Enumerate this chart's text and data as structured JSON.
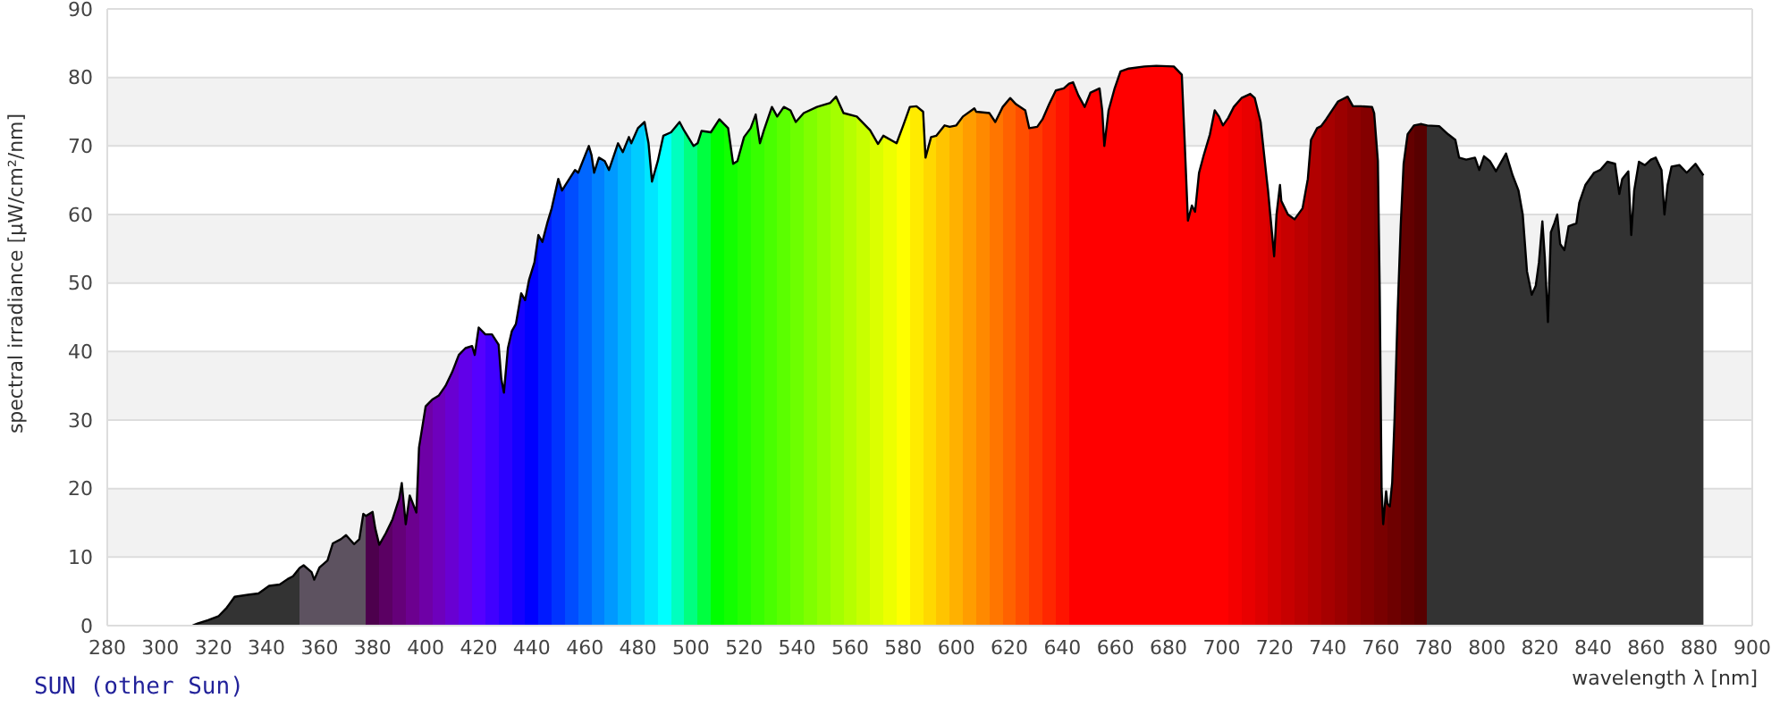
{
  "chart_data": {
    "type": "area",
    "title": "SUN (other Sun)",
    "xlabel": "wavelength λ [nm]",
    "ylabel": "spectral irradiance [µW/cm²/nm]",
    "x": [
      312,
      314,
      318,
      322,
      325,
      328,
      333,
      337,
      341,
      345,
      348,
      350,
      352.5,
      354,
      357,
      358,
      360,
      363,
      365,
      368,
      370,
      373,
      375,
      376.5,
      377.5,
      380,
      381,
      382.5,
      385,
      387.5,
      390,
      391,
      392.5,
      394,
      396.5,
      397.5,
      400,
      402.5,
      405,
      407.5,
      410,
      412.5,
      415,
      417.5,
      418.5,
      420,
      422.5,
      425,
      427.5,
      428.5,
      429.5,
      431,
      432.5,
      434,
      436,
      437.5,
      439,
      441,
      442.5,
      444,
      445.8,
      447.5,
      450,
      451.4,
      452.5,
      456.3,
      457.5,
      461.5,
      462.5,
      463.5,
      465.3,
      467.5,
      469.1,
      472.5,
      474.3,
      476.6,
      477.5,
      480,
      482.5,
      484,
      485.3,
      487.5,
      489.6,
      492.5,
      495.7,
      497.5,
      501,
      502.5,
      504,
      507.5,
      510.7,
      512.5,
      514,
      515.9,
      517.5,
      520,
      522.5,
      524.4,
      526,
      527.5,
      530.5,
      532.5,
      535,
      537.5,
      539.5,
      542.5,
      547.5,
      552.5,
      554.7,
      557.5,
      562.5,
      567.5,
      570.5,
      572.5,
      577.5,
      580,
      582.5,
      585,
      587.5,
      588.4,
      590.5,
      592.5,
      595.6,
      597.5,
      600,
      602.5,
      606.8,
      607.5,
      612.5,
      614.7,
      617.5,
      620.3,
      622.5,
      626,
      627.5,
      630.5,
      632.5,
      635,
      637.5,
      640.5,
      642.5,
      644,
      646,
      648.4,
      650.6,
      654,
      655,
      655.8,
      657.4,
      659.6,
      661.9,
      665,
      670.9,
      675.4,
      682,
      685,
      686.1,
      687.3,
      688.8,
      690,
      691.5,
      693.3,
      695.6,
      697.4,
      699,
      700.5,
      702.5,
      704.6,
      707.5,
      710.8,
      712.5,
      714.7,
      717,
      717.5,
      719.8,
      720.7,
      722,
      722.5,
      725,
      727.5,
      730.5,
      732.5,
      733.7,
      736,
      737.5,
      739.4,
      742.5,
      743.9,
      747.5,
      749.5,
      752.5,
      756.7,
      757.5,
      758.9,
      759.6,
      760.3,
      760.9,
      762,
      762.5,
      763.4,
      764.3,
      765.2,
      766.3,
      767.5,
      768.6,
      770.1,
      772.5,
      775.3,
      777.5,
      782,
      785.4,
      788.1,
      789.5,
      792.2,
      795.5,
      797.1,
      798.9,
      801.1,
      803.4,
      807.2,
      809.7,
      811.9,
      813.5,
      815.1,
      816.9,
      818.4,
      819.6,
      820.9,
      821.8,
      823,
      824.1,
      825.4,
      826.5,
      827.6,
      829.2,
      830.8,
      833.7,
      834.8,
      837.1,
      840.4,
      842.7,
      845.4,
      848.3,
      849.9,
      851,
      853.3,
      854.4,
      855.5,
      857.3,
      859.5,
      861.8,
      863.6,
      865.8,
      866.9,
      868.1,
      869.6,
      872.6,
      875.3,
      878.6,
      881.6
    ],
    "values": [
      0,
      0.3,
      0.8,
      1.4,
      2.6,
      4.2,
      4.5,
      4.7,
      5.8,
      6.0,
      6.8,
      7.2,
      8.4,
      8.8,
      7.8,
      6.7,
      8.5,
      9.5,
      12.0,
      12.6,
      13.2,
      11.9,
      12.6,
      16.3,
      16.0,
      16.6,
      14.2,
      11.8,
      13.5,
      15.5,
      18.5,
      20.8,
      14.8,
      19.0,
      16.5,
      26,
      32,
      33.0,
      33.6,
      35.0,
      37.0,
      39.5,
      40.5,
      40.8,
      39.5,
      43.5,
      42.5,
      42.5,
      41.0,
      36.0,
      34.0,
      40.5,
      43.0,
      44.0,
      48.5,
      47.5,
      50.5,
      53.0,
      57.0,
      56.0,
      58.7,
      60.9,
      65.2,
      63.5,
      64.2,
      66.5,
      66.1,
      70.0,
      68.7,
      66.1,
      68.3,
      67.8,
      66.5,
      70.4,
      69.1,
      71.3,
      70.4,
      72.6,
      73.5,
      70.4,
      64.8,
      67.8,
      71.5,
      72.0,
      73.5,
      72.2,
      70.0,
      70.4,
      72.2,
      72.0,
      73.9,
      73.2,
      72.6,
      67.4,
      67.8,
      71.3,
      72.6,
      74.6,
      70.4,
      72.3,
      75.7,
      74.3,
      75.7,
      75.2,
      73.5,
      74.8,
      75.7,
      76.3,
      77.2,
      74.8,
      74.3,
      72.3,
      70.3,
      71.5,
      70.4,
      73.0,
      75.7,
      75.8,
      75.0,
      68.3,
      71.3,
      71.5,
      73.0,
      72.8,
      73.0,
      74.3,
      75.5,
      75.0,
      74.8,
      73.5,
      75.7,
      77.0,
      76.1,
      75.2,
      72.6,
      72.8,
      73.9,
      76.1,
      78.1,
      78.4,
      79.1,
      79.3,
      77.4,
      75.7,
      77.8,
      78.4,
      75.2,
      70.0,
      75.2,
      78.3,
      80.9,
      81.3,
      81.6,
      81.7,
      81.6,
      80.4,
      70.4,
      59.1,
      61.3,
      60.4,
      66.1,
      68.7,
      71.7,
      75.2,
      74.3,
      73.0,
      74.1,
      75.7,
      77.0,
      77.6,
      77.0,
      73.5,
      65.2,
      63.5,
      53.9,
      60.0,
      64.3,
      62.0,
      60.0,
      59.3,
      60.9,
      65.2,
      70.9,
      72.6,
      72.9,
      73.9,
      75.7,
      76.5,
      77.2,
      75.8,
      75.8,
      75.7,
      74.8,
      67.8,
      48.7,
      20.0,
      14.8,
      19.6,
      17.8,
      17.4,
      20.9,
      30.4,
      45.2,
      58.3,
      67.4,
      71.7,
      73.0,
      73.2,
      73.0,
      72.9,
      71.7,
      70.9,
      68.3,
      68.0,
      68.3,
      66.5,
      68.5,
      67.8,
      66.3,
      68.9,
      65.7,
      63.5,
      60.0,
      51.7,
      48.3,
      49.6,
      53.0,
      59.0,
      53.9,
      44.3,
      57.4,
      58.7,
      60.0,
      55.7,
      54.8,
      58.3,
      58.7,
      61.7,
      64.3,
      66.1,
      66.5,
      67.7,
      67.4,
      63.0,
      65.2,
      66.3,
      57.0,
      63.5,
      67.7,
      67.2,
      68.0,
      68.3,
      66.5,
      60.0,
      64.3,
      67.0,
      67.2,
      66.1,
      67.4,
      65.7
    ],
    "colors": [
      "#333333",
      "#333333",
      "#333333",
      "#333333",
      "#333333",
      "#333333",
      "#333333",
      "#333333",
      "#333333",
      "#333333",
      "#333333",
      "#333333",
      "#5d5260",
      "#5d5260",
      "#5d5260",
      "#5d5260",
      "#5d5260",
      "#5d5260",
      "#5d5260",
      "#5d5260",
      "#5d5260",
      "#5d5260",
      "#5d5260",
      "#5d5260",
      "#4d004d",
      "#4d004d",
      "#4d004d",
      "#5b0063",
      "#5b0063",
      "#650079",
      "#650079",
      "#650079",
      "#6c008f",
      "#6c008f",
      "#6c008f",
      "#6e00a6",
      "#6e00a6",
      "#6e00bc",
      "#6e00bc",
      "#6900d2",
      "#6900d2",
      "#6100e9",
      "#6100e9",
      "#5500ff",
      "#5500ff",
      "#5500ff",
      "#4000ff",
      "#4000ff",
      "#2b00ff",
      "#2b00ff",
      "#2b00ff",
      "#2b00ff",
      "#1500ff",
      "#1500ff",
      "#1500ff",
      "#0000ff",
      "#0000ff",
      "#0000ff",
      "#001aff",
      "#001aff",
      "#001aff",
      "#0033ff",
      "#0033ff",
      "#0033ff",
      "#004dff",
      "#004dff",
      "#0066ff",
      "#0066ff",
      "#0080ff",
      "#0080ff",
      "#0080ff",
      "#0099ff",
      "#0099ff",
      "#00b3ff",
      "#00b3ff",
      "#00b3ff",
      "#00ccff",
      "#00ccff",
      "#00e6ff",
      "#00e6ff",
      "#00e6ff",
      "#00ffff",
      "#00ffff",
      "#00ffbf",
      "#00ffbf",
      "#00ff80",
      "#00ff80",
      "#00ff40",
      "#00ff40",
      "#00ff00",
      "#00ff00",
      "#12ff00",
      "#12ff00",
      "#12ff00",
      "#24ff00",
      "#24ff00",
      "#37ff00",
      "#37ff00",
      "#37ff00",
      "#49ff00",
      "#49ff00",
      "#5bff00",
      "#5bff00",
      "#6dff00",
      "#6dff00",
      "#80ff00",
      "#92ff00",
      "#a4ff00",
      "#a4ff00",
      "#b6ff00",
      "#c8ff00",
      "#dbff00",
      "#dbff00",
      "#edff00",
      "#ffff00",
      "#ffff00",
      "#ffeb00",
      "#ffeb00",
      "#ffd800",
      "#ffd800",
      "#ffd800",
      "#ffc400",
      "#ffc400",
      "#ffb100",
      "#ffb100",
      "#ff9d00",
      "#ff9d00",
      "#ff8900",
      "#ff7600",
      "#ff7600",
      "#ff6200",
      "#ff6200",
      "#ff4e00",
      "#ff4e00",
      "#ff3b00",
      "#ff3b00",
      "#ff2700",
      "#ff2700",
      "#ff1400",
      "#ff1400",
      "#ff0000",
      "#ff0000",
      "#ff0000",
      "#ff0000",
      "#ff0000",
      "#ff0000",
      "#ff0000",
      "#ff0000",
      "#ff0000",
      "#ff0000",
      "#ff0000",
      "#ff0000",
      "#ff0000",
      "#ff0000",
      "#ff0000",
      "#ff0000",
      "#ff0000",
      "#ff0000",
      "#ff0000",
      "#ff0000",
      "#ff0000",
      "#ff0000",
      "#ff0000",
      "#ff0000",
      "#ff0000",
      "#ff0000",
      "#f40000",
      "#f40000",
      "#e90000",
      "#e90000",
      "#de0000",
      "#de0000",
      "#de0000",
      "#d20000",
      "#d20000",
      "#d20000",
      "#d20000",
      "#c70000",
      "#c70000",
      "#bc0000",
      "#bc0000",
      "#b10000",
      "#b10000",
      "#b10000",
      "#a60000",
      "#a60000",
      "#9b0000",
      "#9b0000",
      "#8f0000",
      "#8f0000",
      "#840000",
      "#840000",
      "#790000",
      "#790000",
      "#790000",
      "#790000",
      "#790000",
      "#790000",
      "#6e0000",
      "#6e0000",
      "#6e0000",
      "#6e0000",
      "#6e0000",
      "#630000",
      "#630000",
      "#630000",
      "#580000",
      "#580000",
      "#333333",
      "#333333",
      "#333333",
      "#333333",
      "#333333",
      "#333333",
      "#333333",
      "#333333",
      "#333333",
      "#333333",
      "#333333",
      "#333333",
      "#333333",
      "#333333",
      "#333333",
      "#333333",
      "#333333",
      "#333333",
      "#333333",
      "#333333",
      "#333333",
      "#333333",
      "#333333",
      "#333333",
      "#333333",
      "#333333",
      "#333333",
      "#333333",
      "#333333",
      "#333333",
      "#333333",
      "#333333",
      "#333333",
      "#333333",
      "#333333",
      "#333333",
      "#333333",
      "#333333",
      "#333333",
      "#333333",
      "#333333",
      "#333333",
      "#333333",
      "#333333",
      "#333333",
      "#333333",
      "#333333",
      "#333333",
      "#333333",
      "#333333",
      "#333333",
      "#333333"
    ],
    "xlim": [
      280,
      900
    ],
    "xticks": [
      280,
      300,
      320,
      340,
      360,
      380,
      400,
      420,
      440,
      460,
      480,
      500,
      520,
      540,
      560,
      580,
      600,
      620,
      640,
      660,
      680,
      700,
      720,
      740,
      760,
      780,
      800,
      820,
      840,
      860,
      880,
      900
    ],
    "ylim": [
      0,
      90
    ],
    "yticks": [
      0,
      10,
      20,
      30,
      40,
      50,
      60,
      70,
      80,
      90
    ],
    "grid": "y"
  }
}
